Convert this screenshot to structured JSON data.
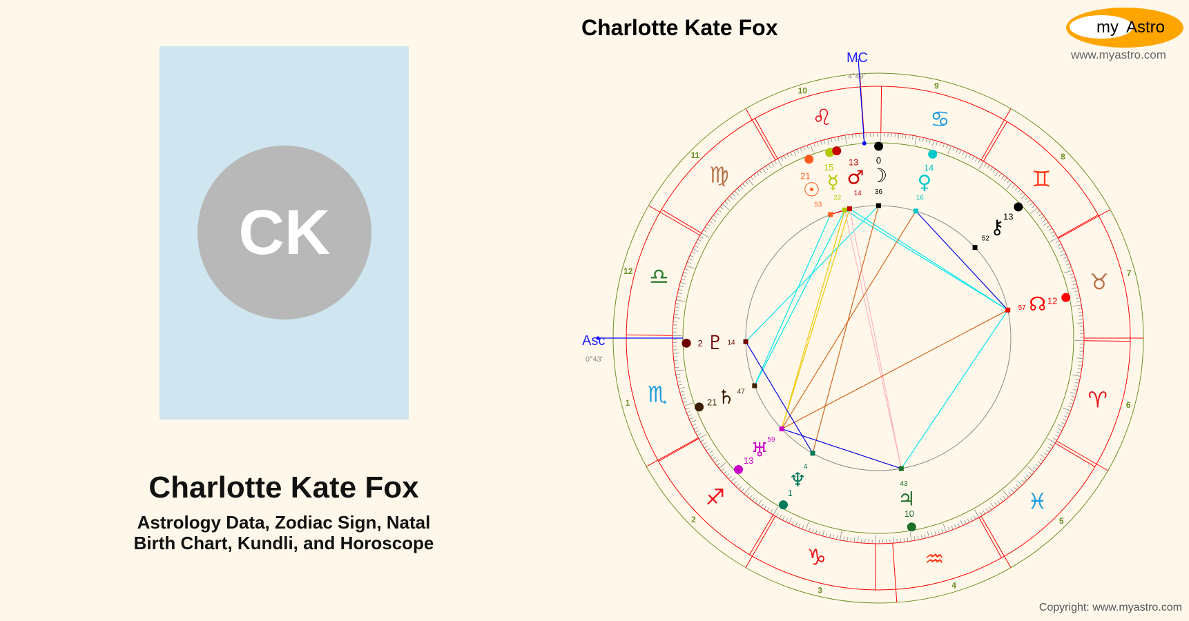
{
  "profile": {
    "initials": "CK",
    "name": "Charlotte Kate Fox",
    "subtitle_line1": "Astrology Data, Zodiac Sign, Natal",
    "subtitle_line2": "Birth Chart, Kundli, and Horoscope"
  },
  "chart_title": "Charlotte Kate Fox",
  "logo": {
    "text_my": "my",
    "text_astro": "Astro",
    "url": "www.myastro.com",
    "color": "#ffa500"
  },
  "copyright": "Copyright: www.myastro.com",
  "angles": {
    "asc_label": "Asc",
    "asc_degree": "0°43'",
    "asc_longitude": 210.72,
    "mc_label": "MC",
    "mc_degree": "4°49'",
    "mc_longitude": 124.82
  },
  "signs": [
    {
      "name": "Aries",
      "glyph": "♈",
      "color": "#e8141e"
    },
    {
      "name": "Taurus",
      "glyph": "♉",
      "color": "#b8734a"
    },
    {
      "name": "Gemini",
      "glyph": "♊",
      "color": "#ff3c1e"
    },
    {
      "name": "Cancer",
      "glyph": "♋",
      "color": "#1e9be0"
    },
    {
      "name": "Leo",
      "glyph": "♌",
      "color": "#e8141e"
    },
    {
      "name": "Virgo",
      "glyph": "♍",
      "color": "#b8734a"
    },
    {
      "name": "Libra",
      "glyph": "♎",
      "color": "#2e7d32"
    },
    {
      "name": "Scorpio",
      "glyph": "♏",
      "color": "#1e9be0"
    },
    {
      "name": "Sagittarius",
      "glyph": "♐",
      "color": "#e8141e"
    },
    {
      "name": "Capricorn",
      "glyph": "♑",
      "color": "#e8141e"
    },
    {
      "name": "Aquarius",
      "glyph": "♒",
      "color": "#ff3c1e"
    },
    {
      "name": "Pisces",
      "glyph": "♓",
      "color": "#1e9be0"
    }
  ],
  "houses": [
    {
      "n": "1",
      "cusp_angle": 180
    },
    {
      "n": "2",
      "cusp_angle": 209
    },
    {
      "n": "3",
      "cusp_angle": 240
    },
    {
      "n": "4",
      "cusp_angle": 274
    },
    {
      "n": "5",
      "cusp_angle": 300
    },
    {
      "n": "6",
      "cusp_angle": 330
    },
    {
      "n": "7",
      "cusp_angle": 0
    },
    {
      "n": "8",
      "cusp_angle": 29
    },
    {
      "n": "9",
      "cusp_angle": 60
    },
    {
      "n": "10",
      "cusp_angle": 94
    },
    {
      "n": "11",
      "cusp_angle": 120
    },
    {
      "n": "12",
      "cusp_angle": 150
    }
  ],
  "planets": [
    {
      "id": "sun",
      "glyph": "☉",
      "sign": "Leo",
      "deg": "21",
      "min": "53",
      "longitude": 141.88,
      "color": "#ff5a1e"
    },
    {
      "id": "moon",
      "glyph": "☽",
      "sign": "Leo",
      "deg": "0",
      "min": "36",
      "longitude": 120.6,
      "color": "#000000"
    },
    {
      "id": "mercury",
      "glyph": "☿",
      "sign": "Leo",
      "deg": "15",
      "min": "22",
      "longitude": 135.37,
      "color": "#b4c800"
    },
    {
      "id": "mars",
      "glyph": "♂",
      "sign": "Leo",
      "deg": "13",
      "min": "14",
      "longitude": 133.23,
      "color": "#c80000"
    },
    {
      "id": "venus",
      "glyph": "♀",
      "sign": "Cancer",
      "deg": "14",
      "min": "16",
      "longitude": 104.27,
      "color": "#00c8c8"
    },
    {
      "id": "chiron",
      "glyph": "⚷",
      "sign": "Gemini",
      "deg": "13",
      "min": "52",
      "longitude": 73.87,
      "color": "#000000"
    },
    {
      "id": "node",
      "glyph": "☊",
      "sign": "Taurus",
      "deg": "12",
      "min": "57",
      "longitude": 42.95,
      "color": "#ff0000"
    },
    {
      "id": "pluto",
      "glyph": "♇",
      "sign": "Scorpio",
      "deg": "2",
      "min": "14",
      "longitude": 212.23,
      "color": "#6e0000"
    },
    {
      "id": "saturn",
      "glyph": "♄",
      "sign": "Scorpio",
      "deg": "21",
      "min": "47",
      "longitude": 231.78,
      "color": "#3c1e00"
    },
    {
      "id": "uranus",
      "glyph": "♅",
      "sign": "Sagittarius",
      "deg": "13",
      "min": "59",
      "longitude": 253.98,
      "color": "#c800c8"
    },
    {
      "id": "neptune",
      "glyph": "♆",
      "sign": "Capricorn",
      "deg": "1",
      "min": "4",
      "longitude": 271.07,
      "color": "#00785a"
    },
    {
      "id": "jupiter",
      "glyph": "♃",
      "sign": "Aquarius",
      "deg": "10",
      "min": "43",
      "longitude": 310.72,
      "color": "#1e6e28"
    }
  ],
  "aspects": [
    {
      "a": "sun",
      "b": "saturn",
      "type": "square",
      "color": "#00e5ee"
    },
    {
      "a": "mercury",
      "b": "saturn",
      "type": "square",
      "color": "#00e5ee"
    },
    {
      "a": "moon",
      "b": "pluto",
      "type": "square",
      "color": "#00e5ee"
    },
    {
      "a": "mercury",
      "b": "node",
      "type": "square",
      "color": "#00e5ee"
    },
    {
      "a": "mars",
      "b": "node",
      "type": "square",
      "color": "#00e5ee"
    },
    {
      "a": "node",
      "b": "jupiter",
      "type": "square",
      "color": "#00e5ee"
    },
    {
      "a": "mercury",
      "b": "uranus",
      "type": "trine",
      "color": "#f0c800"
    },
    {
      "a": "mars",
      "b": "uranus",
      "type": "trine",
      "color": "#f0c800"
    },
    {
      "a": "mercury",
      "b": "jupiter",
      "type": "opposition",
      "color": "#ffb4c0"
    },
    {
      "a": "mars",
      "b": "jupiter",
      "type": "opposition",
      "color": "#ffb4c0"
    },
    {
      "a": "moon",
      "b": "neptune",
      "type": "quincunx",
      "color": "#d2641e"
    },
    {
      "a": "venus",
      "b": "uranus",
      "type": "quincunx",
      "color": "#d2641e"
    },
    {
      "a": "node",
      "b": "uranus",
      "type": "quincunx",
      "color": "#d2641e"
    },
    {
      "a": "venus",
      "b": "node",
      "type": "sextile",
      "color": "#0000e6"
    },
    {
      "a": "pluto",
      "b": "neptune",
      "type": "sextile",
      "color": "#0000e6"
    },
    {
      "a": "uranus",
      "b": "jupiter",
      "type": "sextile",
      "color": "#0000e6"
    },
    {
      "a": "sun",
      "b": "mars",
      "type": "conjunction",
      "color": "#e80000"
    }
  ]
}
